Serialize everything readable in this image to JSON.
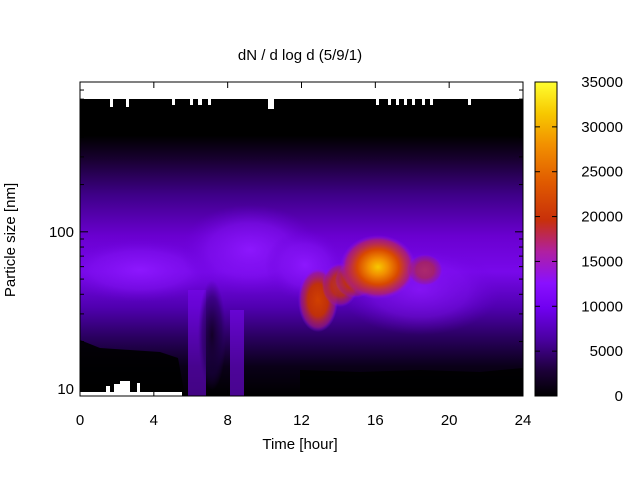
{
  "chart_data": {
    "type": "heatmap",
    "title": "dN / d log d (5/9/1)",
    "xlabel": "Time [hour]",
    "ylabel": "Particle size [nm]",
    "x_range": [
      0,
      24
    ],
    "x_ticks": [
      "0",
      "4",
      "8",
      "12",
      "16",
      "20",
      "24"
    ],
    "y_scale": "log",
    "y_range": [
      9,
      900
    ],
    "y_ticks": [
      "10",
      "100"
    ],
    "colorbar": {
      "range": [
        0,
        35000
      ],
      "ticks": [
        "0",
        "5000",
        "10000",
        "15000",
        "20000",
        "25000",
        "30000",
        "35000"
      ],
      "palette": [
        "#000000",
        "#3a0070",
        "#6a00d8",
        "#8a10ff",
        "#b020a0",
        "#c8300a",
        "#e05a00",
        "#f29000",
        "#f7c800",
        "#ffff30"
      ]
    },
    "features": [
      {
        "desc": "peak",
        "time_hour": 16.0,
        "size_nm": 66,
        "value": 27000
      },
      {
        "desc": "secondary mode",
        "time_hour": 12.8,
        "size_nm": 35,
        "value": 18000
      },
      {
        "desc": "background mode",
        "time_hour": 4.0,
        "size_nm": 65,
        "value": 9000
      }
    ],
    "grid": false,
    "legend": "colorbar-right"
  }
}
